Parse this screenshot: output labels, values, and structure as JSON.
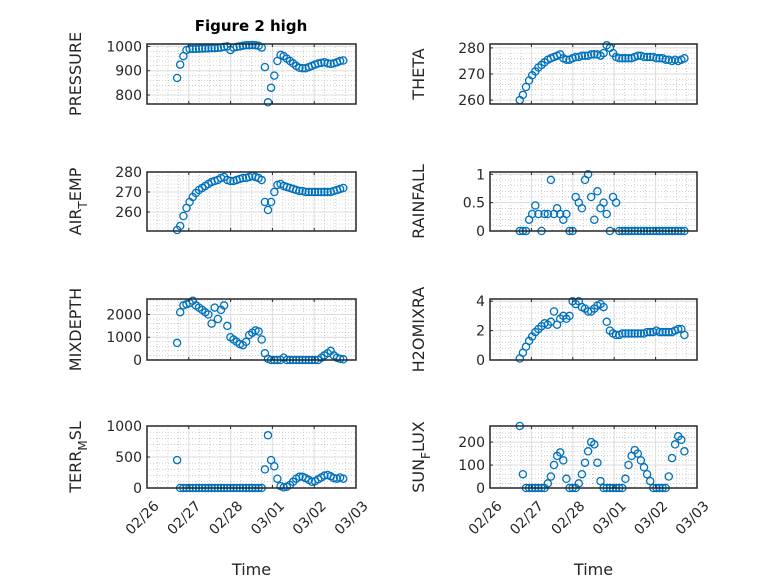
{
  "figure": {
    "title": "Figure 2 high",
    "xlabel": "Time",
    "marker_color": "#0072BD"
  },
  "chart_data": {
    "type": "scatter",
    "x_unit": "days since 02/26 00:00",
    "xlim": [
      0,
      5
    ],
    "xticks": [
      0,
      1,
      2,
      3,
      4,
      5
    ],
    "xtick_labels": [
      "02/26",
      "02/27",
      "02/28",
      "03/01",
      "03/02",
      "03/03"
    ],
    "grid": "major+minor",
    "x": [
      0.72,
      0.795,
      0.87,
      0.945,
      1.02,
      1.095,
      1.17,
      1.245,
      1.32,
      1.395,
      1.47,
      1.545,
      1.62,
      1.695,
      1.77,
      1.845,
      1.92,
      1.995,
      2.07,
      2.145,
      2.22,
      2.295,
      2.37,
      2.445,
      2.52,
      2.595,
      2.67,
      2.745,
      2.82,
      2.895,
      2.97,
      3.045,
      3.12,
      3.195,
      3.27,
      3.345,
      3.42,
      3.495,
      3.57,
      3.645,
      3.72,
      3.795,
      3.87,
      3.945,
      4.02,
      4.095,
      4.17,
      4.245,
      4.32,
      4.395,
      4.47,
      4.545,
      4.62,
      4.695
    ],
    "subplots": [
      {
        "name": "pressure",
        "ylabel": {
          "main": "PRESSURE",
          "sub": "",
          "rest": ""
        },
        "ylim": [
          763,
          1010
        ],
        "yticks": [
          800,
          900,
          1000
        ],
        "ytick_labels": [
          "800",
          "900",
          "1000"
        ],
        "y": [
          870,
          925,
          960,
          985,
          990,
          990,
          990,
          991,
          991,
          992,
          992,
          993,
          993,
          994,
          995,
          998,
          1000,
          985,
          995,
          998,
          1000,
          1003,
          1005,
          1005,
          1006,
          1005,
          1003,
          995,
          915,
          770,
          830,
          880,
          940,
          965,
          960,
          950,
          940,
          930,
          920,
          912,
          910,
          910,
          915,
          920,
          925,
          930,
          932,
          935,
          930,
          928,
          930,
          935,
          940,
          942
        ]
      },
      {
        "name": "theta",
        "ylabel": {
          "main": "THETA",
          "sub": "",
          "rest": ""
        },
        "ylim": [
          258.5,
          281.5
        ],
        "yticks": [
          260,
          270,
          280
        ],
        "ytick_labels": [
          "260",
          "270",
          "280"
        ],
        "y": [
          260,
          262,
          265,
          267.5,
          269.5,
          271,
          272.5,
          273.5,
          274.5,
          275.5,
          276,
          276.5,
          277,
          277.5,
          276,
          275.5,
          275.5,
          276,
          276.5,
          276.5,
          277,
          277,
          277,
          277.5,
          277.5,
          277.5,
          277,
          278,
          281,
          280,
          278,
          276.5,
          276,
          276,
          276,
          276,
          276,
          276.5,
          277,
          277,
          276.5,
          276.5,
          276.5,
          276.5,
          276,
          276,
          276,
          275.5,
          275.5,
          275,
          275.5,
          275,
          275.5,
          276
        ]
      },
      {
        "name": "air-temp",
        "ylabel": {
          "main": "AIR",
          "sub": "T",
          "rest": "EMP"
        },
        "ylim": [
          250.5,
          280
        ],
        "yticks": [
          260,
          270,
          280
        ],
        "ytick_labels": [
          "260",
          "270",
          "280"
        ],
        "y": [
          251,
          253,
          258,
          262,
          265,
          267.5,
          269.5,
          271,
          272,
          273,
          274,
          275,
          275.5,
          276,
          277,
          277.5,
          276,
          275.5,
          275.5,
          276,
          276.5,
          277,
          277,
          277.5,
          278,
          277.5,
          277,
          276,
          265,
          261,
          265,
          270,
          273.5,
          274,
          273,
          272.5,
          272,
          271.5,
          271,
          270.5,
          270.5,
          270,
          270,
          270,
          270,
          270,
          270,
          270,
          270,
          270,
          270.5,
          271,
          271.5,
          272
        ]
      },
      {
        "name": "rainfall",
        "ylabel": {
          "main": "RAINFALL",
          "sub": "",
          "rest": ""
        },
        "ylim": [
          0,
          1.04
        ],
        "yticks": [
          0,
          0.5,
          1
        ],
        "ytick_labels": [
          "0",
          "0.5",
          "1"
        ],
        "y": [
          0,
          0,
          0,
          0.2,
          0.3,
          0.45,
          0.3,
          0,
          0.3,
          0.3,
          0.9,
          0.3,
          0.4,
          0.3,
          0.2,
          0.3,
          0,
          0,
          0.6,
          0.5,
          0.4,
          0.9,
          1.0,
          0.6,
          0.2,
          0.7,
          0.4,
          0.5,
          0.3,
          0,
          0.6,
          0.5,
          0,
          0,
          0,
          0,
          0,
          0,
          0,
          0,
          0,
          0,
          0,
          0,
          0,
          0,
          0,
          0,
          0,
          0,
          0,
          0,
          0,
          0
        ]
      },
      {
        "name": "mixdepth",
        "ylabel": {
          "main": "MIXDEPTH",
          "sub": "",
          "rest": ""
        },
        "ylim": [
          0,
          2680
        ],
        "yticks": [
          0,
          1000,
          2000
        ],
        "ytick_labels": [
          "0",
          "1000",
          "2000"
        ],
        "y": [
          750,
          2100,
          2400,
          2450,
          2500,
          2600,
          2400,
          2300,
          2200,
          2100,
          2000,
          1600,
          2300,
          1800,
          2200,
          2400,
          1500,
          1000,
          900,
          800,
          700,
          650,
          800,
          1100,
          1200,
          1300,
          1250,
          900,
          300,
          50,
          0,
          0,
          0,
          0,
          100,
          0,
          0,
          0,
          0,
          0,
          0,
          0,
          0,
          0,
          0,
          0,
          100,
          200,
          300,
          400,
          200,
          100,
          50,
          30
        ]
      },
      {
        "name": "h2omixra",
        "ylabel": {
          "main": "H2OMIXRA",
          "sub": "",
          "rest": ""
        },
        "ylim": [
          0,
          4.15
        ],
        "yticks": [
          0,
          2,
          4
        ],
        "ytick_labels": [
          "0",
          "2",
          "4"
        ],
        "y": [
          0.1,
          0.5,
          0.9,
          1.3,
          1.6,
          1.9,
          2.1,
          2.3,
          2.5,
          2.4,
          2.6,
          3.3,
          2.4,
          2.8,
          3.0,
          2.8,
          3.0,
          4.0,
          3.8,
          4.0,
          3.6,
          3.5,
          3.3,
          3.3,
          3.5,
          3.7,
          3.8,
          3.6,
          2.6,
          2.0,
          1.8,
          1.7,
          1.7,
          1.8,
          1.8,
          1.8,
          1.8,
          1.8,
          1.8,
          1.8,
          1.8,
          1.9,
          1.9,
          1.9,
          2.0,
          1.9,
          1.9,
          1.9,
          1.9,
          1.9,
          2.0,
          2.1,
          2.1,
          1.7
        ]
      },
      {
        "name": "terr-msl",
        "ylabel": {
          "main": "TERR",
          "sub": "M",
          "rest": "SL"
        },
        "ylim": [
          0,
          1000
        ],
        "yticks": [
          0,
          500,
          1000
        ],
        "ytick_labels": [
          "0",
          "500",
          "1000"
        ],
        "y": [
          450,
          0,
          0,
          0,
          0,
          0,
          0,
          0,
          0,
          0,
          0,
          0,
          0,
          0,
          0,
          0,
          0,
          0,
          0,
          0,
          0,
          0,
          0,
          0,
          0,
          0,
          0,
          0,
          300,
          850,
          450,
          350,
          150,
          30,
          10,
          20,
          50,
          100,
          150,
          180,
          180,
          160,
          130,
          100,
          110,
          140,
          170,
          200,
          210,
          190,
          160,
          150,
          170,
          150
        ]
      },
      {
        "name": "sun-flux",
        "ylabel": {
          "main": "SUN",
          "sub": "F",
          "rest": "LUX"
        },
        "ylim": [
          0,
          270
        ],
        "yticks": [
          0,
          100,
          200
        ],
        "ytick_labels": [
          "0",
          "100",
          "200"
        ],
        "y": [
          270,
          60,
          0,
          0,
          0,
          0,
          0,
          0,
          0,
          20,
          50,
          100,
          140,
          155,
          120,
          40,
          0,
          0,
          0,
          20,
          60,
          110,
          160,
          200,
          190,
          110,
          30,
          0,
          0,
          0,
          0,
          0,
          0,
          0,
          40,
          100,
          140,
          165,
          150,
          120,
          90,
          60,
          30,
          0,
          0,
          0,
          0,
          0,
          50,
          130,
          190,
          225,
          210,
          160
        ]
      }
    ]
  }
}
